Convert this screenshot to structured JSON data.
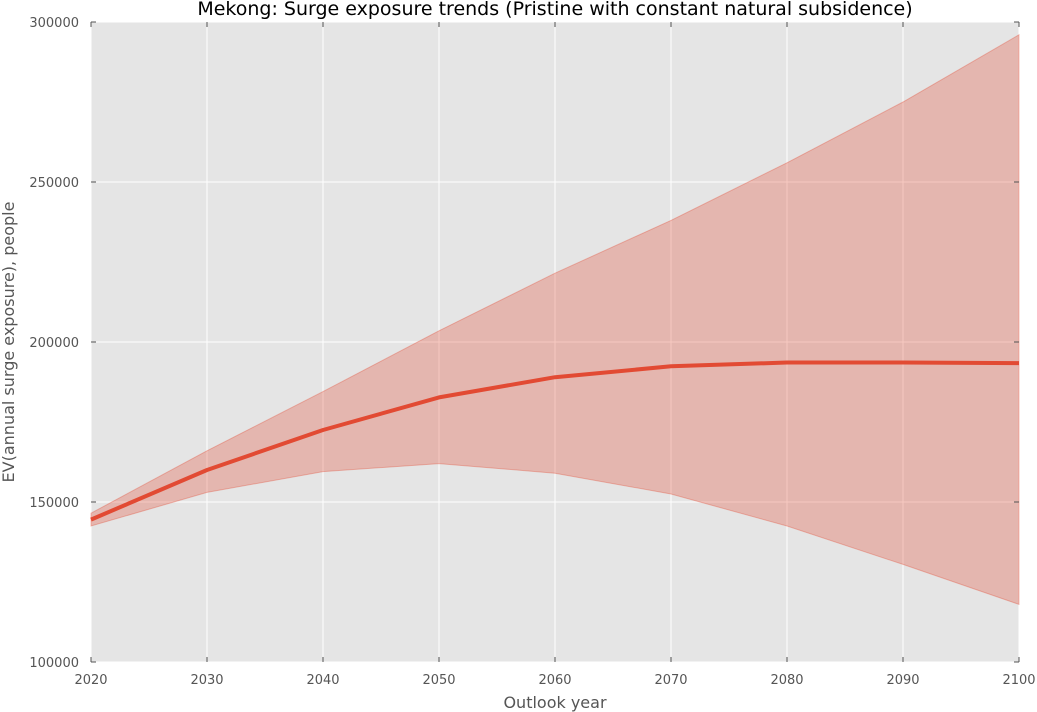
{
  "chart_data": {
    "type": "line",
    "title": "Mekong: Surge exposure trends (Pristine with constant natural subsidence)",
    "xlabel": "Outlook year",
    "ylabel": "EV(annual surge exposure), people",
    "xlim": [
      2020,
      2100
    ],
    "ylim": [
      100000,
      300000
    ],
    "x_ticks": [
      2020,
      2030,
      2040,
      2050,
      2060,
      2070,
      2080,
      2090,
      2100
    ],
    "y_ticks": [
      100000,
      150000,
      200000,
      250000,
      300000
    ],
    "grid": true,
    "background": "#e5e5e5",
    "x": [
      2020,
      2030,
      2040,
      2050,
      2060,
      2070,
      2080,
      2090,
      2100
    ],
    "series": [
      {
        "values": [
          144500,
          160000,
          172500,
          182700,
          189000,
          192400,
          193600,
          193600,
          193400
        ],
        "color": "#e24a33"
      }
    ],
    "band": {
      "lower": [
        142500,
        153000,
        159500,
        162000,
        159000,
        152500,
        142500,
        130500,
        118000
      ],
      "upper": [
        146500,
        166000,
        184500,
        203500,
        221500,
        238000,
        256000,
        275000,
        296000
      ],
      "color": "#e24a33",
      "opacity": 0.3
    }
  }
}
